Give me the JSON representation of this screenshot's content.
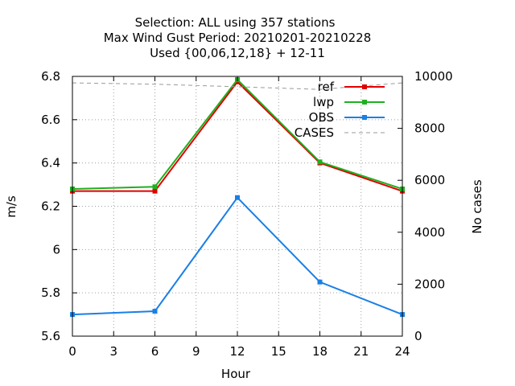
{
  "chart_data": {
    "type": "line",
    "title_lines": [
      "Selection: ALL using   357 stations",
      "Max Wind Gust   Period: 20210201-20210228",
      "Used {00,06,12,18} + 12-11"
    ],
    "xlabel": "Hour",
    "ylabel": "m/s",
    "y2label": "No cases",
    "xlim": [
      0,
      24
    ],
    "ylim": [
      5.6,
      6.8
    ],
    "y2lim": [
      0,
      10000
    ],
    "xticks": [
      0,
      3,
      6,
      9,
      12,
      15,
      18,
      21,
      24
    ],
    "yticks": [
      5.6,
      5.8,
      6.0,
      6.2,
      6.4,
      6.6,
      6.8
    ],
    "ytick_labels": [
      "5.6",
      "5.8",
      "6",
      "6.2",
      "6.4",
      "6.6",
      "6.8"
    ],
    "y2ticks": [
      0,
      2000,
      4000,
      6000,
      8000,
      10000
    ],
    "grid": true,
    "legend_position": "top-right",
    "x": [
      0,
      6,
      12,
      18,
      24
    ],
    "series": [
      {
        "name": "ref",
        "color": "#e00000",
        "axis": "y",
        "marker": true,
        "dashed": false,
        "values": [
          6.27,
          6.27,
          6.775,
          6.4,
          6.27
        ]
      },
      {
        "name": "lwp",
        "color": "#1fb01f",
        "axis": "y",
        "marker": true,
        "dashed": false,
        "values": [
          6.28,
          6.29,
          6.785,
          6.405,
          6.28
        ]
      },
      {
        "name": "OBS",
        "color": "#1a7fe6",
        "axis": "y",
        "marker": true,
        "dashed": false,
        "values": [
          5.7,
          5.715,
          6.24,
          5.85,
          5.7
        ]
      },
      {
        "name": "CASES",
        "color": "#999999",
        "axis": "y2",
        "marker": false,
        "dashed": true,
        "values": [
          9750,
          9700,
          9600,
          9500,
          9750
        ]
      }
    ]
  }
}
